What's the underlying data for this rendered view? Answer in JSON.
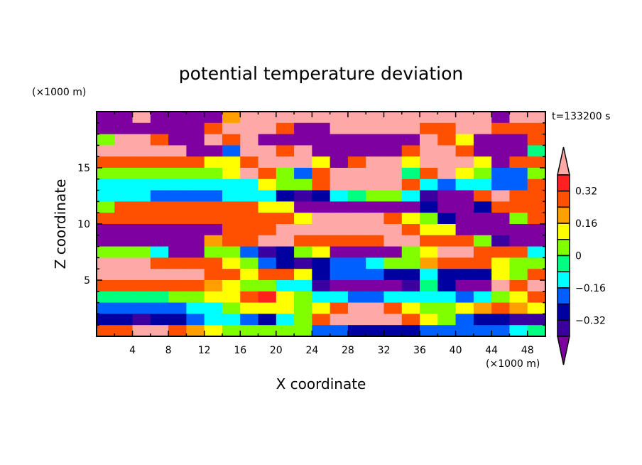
{
  "chart_data": {
    "type": "heatmap",
    "title": "potential temperature deviation",
    "xlabel": "X coordinate",
    "ylabel": "Z coordinate",
    "x_unit": "(×1000 m)",
    "y_unit": "(×1000 m)",
    "time_label": "t=133200 s",
    "xlim": [
      0,
      50
    ],
    "ylim": [
      0,
      20
    ],
    "xticks": [
      4,
      8,
      12,
      16,
      20,
      24,
      28,
      32,
      36,
      40,
      44,
      48
    ],
    "yticks": [
      5,
      10,
      15
    ],
    "colorbar": {
      "bin_edges": [
        -0.4,
        -0.32,
        -0.24,
        -0.16,
        -0.08,
        0,
        0.08,
        0.16,
        0.24,
        0.32,
        0.4
      ],
      "colors": [
        "#7f00a0",
        "#3a00a0",
        "#0000a0",
        "#0060ff",
        "#00ffff",
        "#00ff80",
        "#80ff00",
        "#ffff00",
        "#ffa000",
        "#ff5000",
        "#ff2020",
        "#ffa8a8"
      ],
      "tick_labels": [
        "0.32",
        "0.16",
        "0",
        "-0.16",
        "-0.32"
      ],
      "tick_values": [
        0.32,
        0.16,
        0,
        -0.16,
        -0.32
      ],
      "extend": "both"
    },
    "grid_note_cols": "25 columns spanning x 0-50, rows listed from top (z=19-20) to bottom (z=0-1); values are colorbar bin indices 0-11",
    "grid": [
      [
        0,
        0,
        11,
        0,
        0,
        0,
        0,
        8,
        11,
        11,
        11,
        11,
        11,
        11,
        11,
        11,
        11,
        11,
        11,
        11,
        11,
        11,
        0,
        11,
        11
      ],
      [
        0,
        0,
        0,
        0,
        0,
        0,
        9,
        11,
        11,
        11,
        9,
        0,
        0,
        11,
        11,
        11,
        11,
        11,
        9,
        9,
        11,
        11,
        9,
        9,
        9
      ],
      [
        6,
        11,
        11,
        9,
        0,
        0,
        11,
        9,
        11,
        0,
        0,
        0,
        0,
        0,
        0,
        0,
        0,
        0,
        11,
        9,
        7,
        0,
        0,
        0,
        9
      ],
      [
        11,
        11,
        11,
        11,
        11,
        0,
        0,
        3,
        11,
        11,
        9,
        11,
        0,
        0,
        0,
        0,
        0,
        9,
        11,
        11,
        9,
        0,
        0,
        0,
        5
      ],
      [
        9,
        9,
        9,
        9,
        9,
        9,
        7,
        7,
        9,
        11,
        11,
        11,
        7,
        0,
        9,
        11,
        11,
        7,
        11,
        11,
        11,
        7,
        0,
        9,
        9
      ],
      [
        6,
        6,
        6,
        6,
        6,
        6,
        6,
        7,
        11,
        9,
        6,
        3,
        9,
        11,
        11,
        11,
        11,
        5,
        9,
        11,
        7,
        6,
        3,
        3,
        6
      ],
      [
        4,
        4,
        4,
        4,
        4,
        4,
        4,
        4,
        4,
        7,
        6,
        6,
        9,
        11,
        11,
        11,
        11,
        9,
        4,
        3,
        4,
        4,
        3,
        3,
        9
      ],
      [
        4,
        4,
        4,
        3,
        3,
        3,
        3,
        4,
        4,
        4,
        2,
        1,
        2,
        4,
        5,
        6,
        6,
        4,
        1,
        0,
        0,
        9,
        11,
        9,
        9
      ],
      [
        6,
        9,
        9,
        9,
        9,
        9,
        9,
        9,
        9,
        7,
        7,
        0,
        0,
        0,
        0,
        0,
        0,
        0,
        2,
        0,
        0,
        2,
        9,
        9,
        9
      ],
      [
        9,
        9,
        9,
        9,
        9,
        9,
        9,
        9,
        9,
        9,
        9,
        7,
        11,
        11,
        11,
        11,
        9,
        7,
        6,
        2,
        0,
        0,
        0,
        6,
        9
      ],
      [
        0,
        0,
        0,
        0,
        0,
        0,
        0,
        9,
        9,
        9,
        11,
        11,
        11,
        11,
        11,
        11,
        11,
        9,
        7,
        7,
        0,
        0,
        0,
        0,
        0
      ],
      [
        0,
        0,
        0,
        0,
        0,
        0,
        8,
        9,
        9,
        11,
        11,
        9,
        9,
        9,
        9,
        9,
        11,
        11,
        9,
        9,
        9,
        6,
        1,
        0,
        0
      ],
      [
        6,
        6,
        6,
        4,
        0,
        0,
        6,
        6,
        3,
        1,
        2,
        6,
        7,
        0,
        0,
        0,
        0,
        6,
        7,
        11,
        11,
        9,
        9,
        9,
        4
      ],
      [
        11,
        11,
        11,
        9,
        9,
        9,
        9,
        7,
        6,
        3,
        2,
        1,
        2,
        3,
        3,
        4,
        6,
        6,
        8,
        9,
        9,
        9,
        7,
        6,
        6
      ],
      [
        11,
        11,
        11,
        11,
        11,
        11,
        9,
        9,
        7,
        9,
        9,
        7,
        2,
        3,
        3,
        3,
        2,
        2,
        4,
        2,
        2,
        2,
        7,
        6,
        9
      ],
      [
        9,
        9,
        9,
        9,
        9,
        9,
        8,
        7,
        6,
        6,
        4,
        4,
        1,
        0,
        0,
        0,
        0,
        1,
        5,
        2,
        0,
        0,
        11,
        9,
        11
      ],
      [
        5,
        5,
        5,
        5,
        6,
        6,
        7,
        7,
        9,
        10,
        7,
        6,
        4,
        4,
        3,
        3,
        4,
        4,
        4,
        4,
        3,
        4,
        6,
        7,
        9
      ],
      [
        3,
        3,
        3,
        3,
        3,
        4,
        4,
        6,
        7,
        7,
        7,
        6,
        7,
        9,
        11,
        11,
        9,
        7,
        6,
        6,
        7,
        8,
        9,
        8,
        7
      ],
      [
        2,
        2,
        1,
        2,
        2,
        3,
        4,
        4,
        3,
        2,
        4,
        6,
        9,
        11,
        11,
        11,
        11,
        9,
        7,
        6,
        3,
        2,
        2,
        1,
        1
      ],
      [
        9,
        9,
        11,
        11,
        9,
        8,
        7,
        6,
        6,
        6,
        6,
        6,
        3,
        3,
        2,
        2,
        2,
        2,
        3,
        3,
        3,
        3,
        3,
        4,
        5
      ]
    ]
  }
}
